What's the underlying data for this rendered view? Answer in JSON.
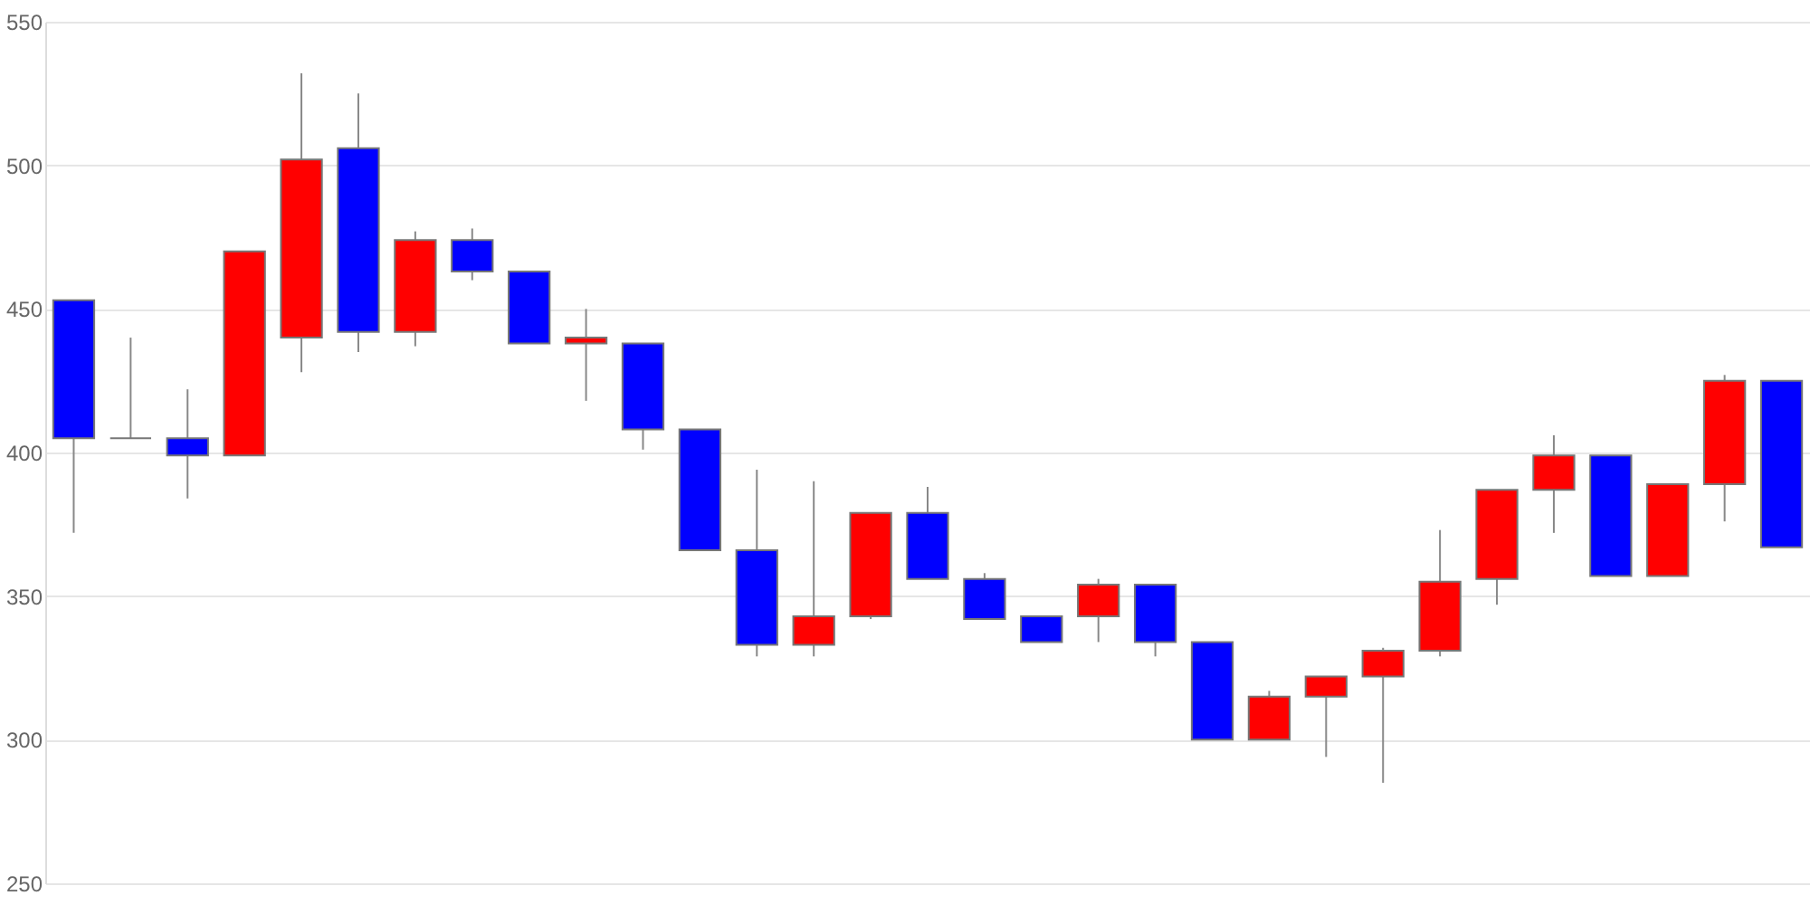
{
  "chart_data": {
    "type": "candlestick",
    "categories": [
      null,
      null,
      null,
      null,
      null,
      null,
      null,
      null,
      null,
      null,
      null,
      null,
      null,
      null,
      null,
      null,
      null,
      null,
      null,
      null,
      null,
      null,
      null,
      null,
      null,
      null,
      null,
      null,
      null,
      null,
      null
    ],
    "ohlc": [
      [
        453,
        453,
        372,
        405
      ],
      [
        405,
        440,
        405,
        405
      ],
      [
        405,
        422,
        384,
        399
      ],
      [
        399,
        470,
        399,
        470
      ],
      [
        440,
        532,
        428,
        502
      ],
      [
        506,
        525,
        435,
        442
      ],
      [
        442,
        477,
        437,
        474
      ],
      [
        474,
        478,
        460,
        463
      ],
      [
        463,
        463,
        438,
        438
      ],
      [
        438,
        450,
        418,
        440
      ],
      [
        438,
        438,
        401,
        408
      ],
      [
        408,
        408,
        366,
        366
      ],
      [
        366,
        394,
        329,
        333
      ],
      [
        333,
        390,
        329,
        343
      ],
      [
        343,
        379,
        342,
        379
      ],
      [
        379,
        388,
        356,
        356
      ],
      [
        356,
        358,
        342,
        342
      ],
      [
        343,
        343,
        334,
        334
      ],
      [
        343,
        356,
        334,
        354
      ],
      [
        354,
        354,
        329,
        334
      ],
      [
        334,
        334,
        300,
        300
      ],
      [
        300,
        317,
        300,
        315
      ],
      [
        315,
        322,
        294,
        322
      ],
      [
        322,
        332,
        285,
        331
      ],
      [
        331,
        373,
        329,
        355
      ],
      [
        356,
        387,
        347,
        387
      ],
      [
        387,
        406,
        372,
        399
      ],
      [
        399,
        399,
        357,
        357
      ],
      [
        357,
        389,
        357,
        389
      ],
      [
        389,
        427,
        376,
        425
      ],
      [
        425,
        425,
        367,
        367
      ]
    ],
    "colors": [
      "#0000ff",
      "#808080",
      "#0000ff",
      "#ff0000",
      "#ff0000",
      "#0000ff",
      "#ff0000",
      "#0000ff",
      "#0000ff",
      "#ff0000",
      "#0000ff",
      "#0000ff",
      "#0000ff",
      "#ff0000",
      "#ff0000",
      "#0000ff",
      "#0000ff",
      "#0000ff",
      "#ff0000",
      "#0000ff",
      "#0000ff",
      "#ff0000",
      "#ff0000",
      "#ff0000",
      "#ff0000",
      "#ff0000",
      "#ff0000",
      "#0000ff",
      "#ff0000",
      "#ff0000",
      "#0000ff"
    ],
    "ylim": [
      250,
      550
    ],
    "yticks": [
      250,
      300,
      350,
      400,
      450,
      500,
      550
    ],
    "grid": "y",
    "tick_labels": "y"
  }
}
